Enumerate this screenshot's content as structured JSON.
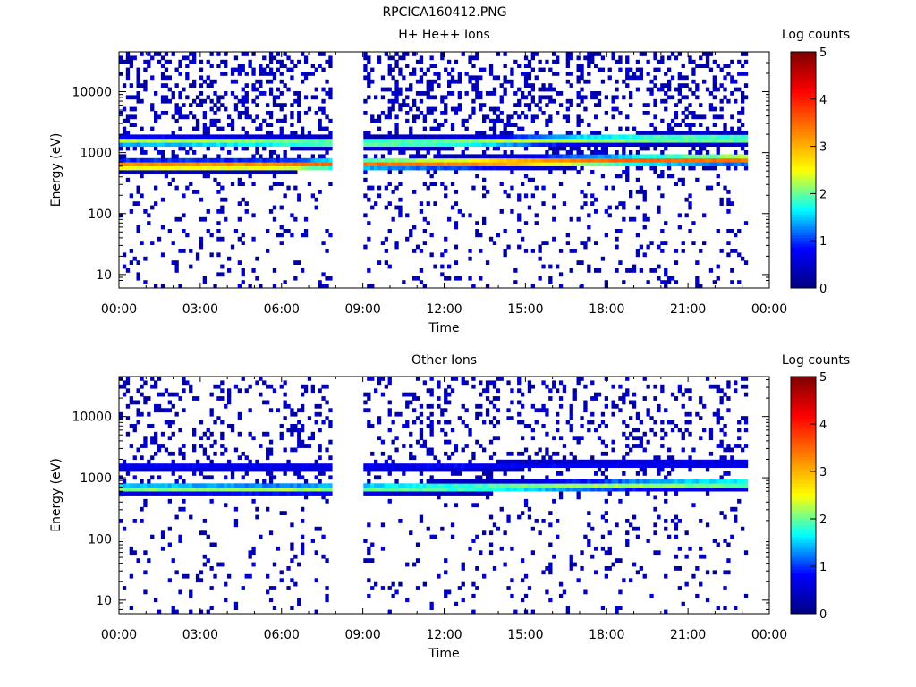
{
  "figure_title": "RPCICA160412.PNG",
  "colormap": [
    "#000080",
    "#0000ff",
    "#00ffff",
    "#ffff00",
    "#ff8000",
    "#ff0000",
    "#800000"
  ],
  "chart_data": [
    {
      "type": "heatmap",
      "title": "H+ He++ Ions",
      "xlabel": "Time",
      "ylabel": "Energy (eV)",
      "x_ticks": [
        "00:00",
        "03:00",
        "06:00",
        "09:00",
        "12:00",
        "15:00",
        "18:00",
        "21:00",
        "00:00"
      ],
      "x_range_hours": [
        0,
        24
      ],
      "y_scale": "log",
      "y_range": [
        6,
        45000
      ],
      "y_ticks": [
        "10",
        "100",
        "1000",
        "10000"
      ],
      "y_tick_values": [
        10,
        100,
        1000,
        10000
      ],
      "colorbar_label": "Log counts",
      "colorbar_ticks": [
        "0",
        "1",
        "2",
        "3",
        "4",
        "5"
      ],
      "colorbar_range": [
        0,
        5
      ],
      "data_gaps_hours": [
        [
          7.9,
          9.0
        ]
      ],
      "data_end_hour": 23.2,
      "bands": [
        {
          "center_eV": [
            620,
            620,
            660,
            680,
            730,
            760,
            780
          ],
          "at_hours": [
            0,
            6,
            9,
            13,
            17,
            20,
            23.2
          ],
          "peak_log_counts": 3.5
        },
        {
          "center_eV": [
            1550,
            1500,
            1450,
            1500,
            1650,
            1700,
            1700
          ],
          "at_hours": [
            0,
            6,
            9,
            13,
            17,
            20,
            23.2
          ],
          "peak_log_counts": 2.3
        }
      ],
      "background_log_counts": 0.3
    },
    {
      "type": "heatmap",
      "title": "Other Ions",
      "xlabel": "Time",
      "ylabel": "Energy (eV)",
      "x_ticks": [
        "00:00",
        "03:00",
        "06:00",
        "09:00",
        "12:00",
        "15:00",
        "18:00",
        "21:00",
        "00:00"
      ],
      "x_range_hours": [
        0,
        24
      ],
      "y_scale": "log",
      "y_range": [
        6,
        45000
      ],
      "y_ticks": [
        "10",
        "100",
        "1000",
        "10000"
      ],
      "y_tick_values": [
        10,
        100,
        1000,
        10000
      ],
      "colorbar_label": "Log counts",
      "colorbar_ticks": [
        "0",
        "1",
        "2",
        "3",
        "4",
        "5"
      ],
      "colorbar_range": [
        0,
        5
      ],
      "data_gaps_hours": [
        [
          7.9,
          9.0
        ]
      ],
      "data_end_hour": 23.2,
      "bands": [
        {
          "center_eV": [
            680,
            660,
            680,
            700,
            740,
            780,
            800
          ],
          "at_hours": [
            0,
            6,
            9,
            13,
            17,
            20,
            23.2
          ],
          "peak_log_counts": 2.2
        },
        {
          "center_eV": [
            1550,
            1500,
            1500,
            1550,
            1650,
            1700,
            1700
          ],
          "at_hours": [
            0,
            6,
            9,
            13,
            17,
            20,
            23.2
          ],
          "peak_log_counts": 0.8
        }
      ],
      "background_log_counts": 0.2
    }
  ]
}
